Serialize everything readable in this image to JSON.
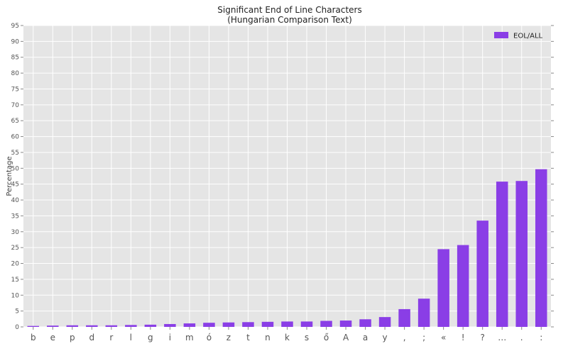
{
  "chart_data": {
    "type": "bar",
    "title": "Significant End of Line Characters",
    "subtitle": "(Hungarian Comparison Text)",
    "xlabel": "",
    "ylabel": "Percentage",
    "ylim": [
      0,
      95
    ],
    "yticks": [
      0,
      5,
      10,
      15,
      20,
      25,
      30,
      35,
      40,
      45,
      50,
      55,
      60,
      65,
      70,
      75,
      80,
      85,
      90,
      95
    ],
    "grid": true,
    "legend_position": "top-right",
    "categories": [
      "b",
      "e",
      "p",
      "d",
      "r",
      "l",
      "g",
      "i",
      "m",
      "ó",
      "z",
      "t",
      "n",
      "k",
      "s",
      "ő",
      "A",
      "a",
      "y",
      ",",
      ";",
      "«",
      "!",
      "?",
      "…",
      ".",
      ":"
    ],
    "series": [
      {
        "name": "EOL/ALL",
        "color": "#8a3ee6",
        "values": [
          0.3,
          0.4,
          0.5,
          0.5,
          0.5,
          0.6,
          0.7,
          0.9,
          1.1,
          1.3,
          1.4,
          1.5,
          1.6,
          1.7,
          1.7,
          1.9,
          2.0,
          2.4,
          3.1,
          5.6,
          8.9,
          24.5,
          25.8,
          33.5,
          45.8,
          46.0,
          49.7
        ]
      }
    ]
  }
}
